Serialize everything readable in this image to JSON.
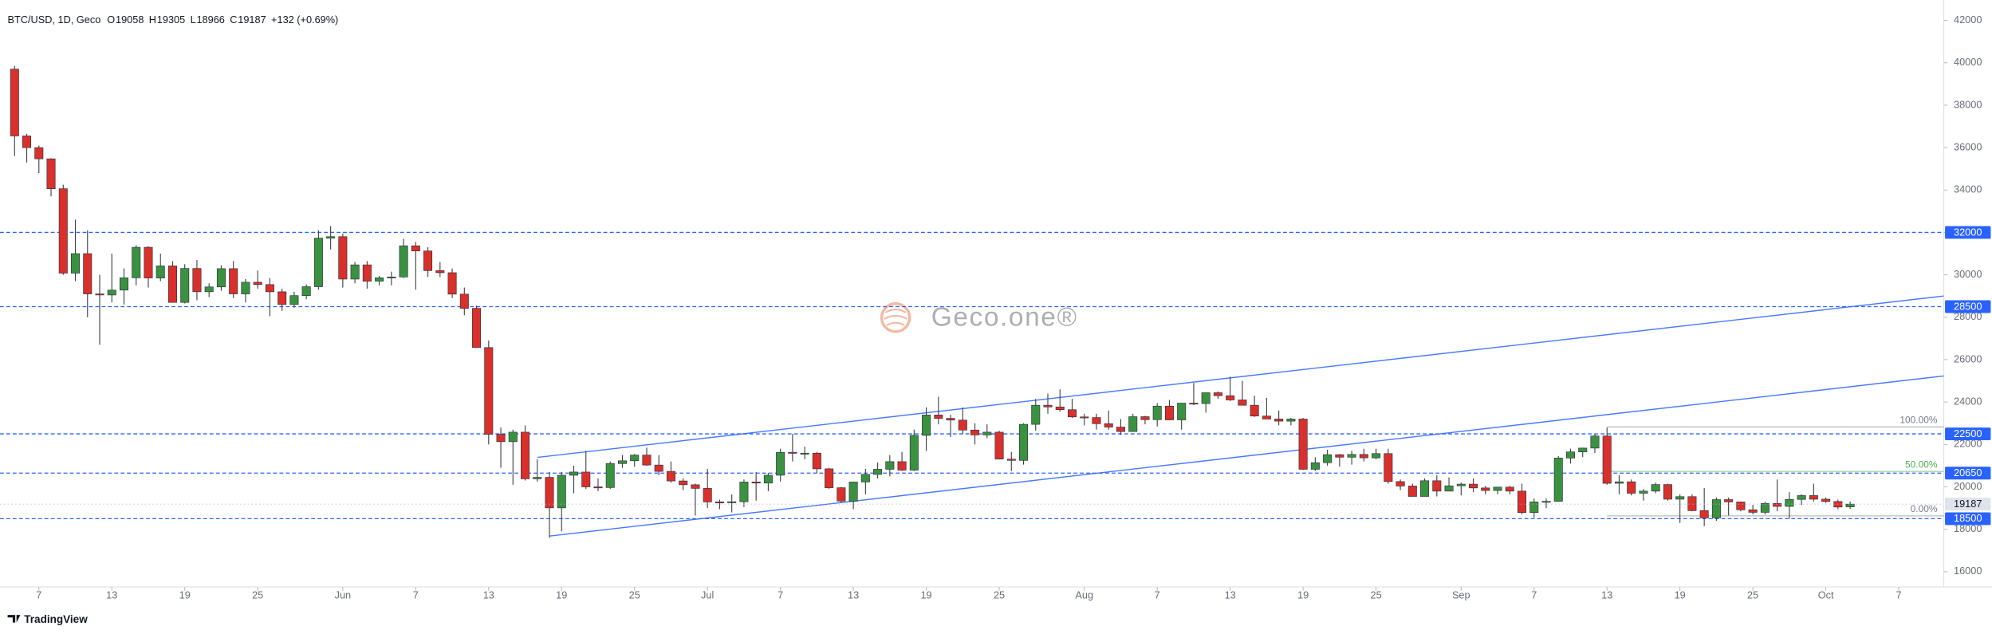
{
  "chart_data": {
    "type": "candlestick",
    "symbol": "BTC/USD, 1D, Geco",
    "ohlc_keys": [
      "O",
      "H",
      "L",
      "C"
    ],
    "change": "+132 (+0.69%)",
    "watermark": "Geco.one®",
    "brand": "TradingView",
    "up_color": "#3a9240",
    "down_color": "#d9302c",
    "level_color": "#2962ff",
    "xlim": [
      -1.2,
      158.7
    ],
    "ylim": [
      15280,
      42660
    ],
    "yticks": [
      16000,
      18000,
      20000,
      22000,
      24000,
      26000,
      28000,
      30000,
      32000,
      34000,
      36000,
      38000,
      40000,
      42000
    ],
    "xticks": [
      {
        "value": 2,
        "label": "7"
      },
      {
        "value": 8,
        "label": "13"
      },
      {
        "value": 14,
        "label": "19"
      },
      {
        "value": 20,
        "label": "25"
      },
      {
        "value": 27,
        "label": "Jun"
      },
      {
        "value": 33,
        "label": "7"
      },
      {
        "value": 39,
        "label": "13"
      },
      {
        "value": 45,
        "label": "19"
      },
      {
        "value": 51,
        "label": "25"
      },
      {
        "value": 57,
        "label": "Jul"
      },
      {
        "value": 63,
        "label": "7"
      },
      {
        "value": 69,
        "label": "13"
      },
      {
        "value": 75,
        "label": "19"
      },
      {
        "value": 81,
        "label": "25"
      },
      {
        "value": 88,
        "label": "Aug"
      },
      {
        "value": 94,
        "label": "7"
      },
      {
        "value": 100,
        "label": "13"
      },
      {
        "value": 106,
        "label": "19"
      },
      {
        "value": 112,
        "label": "25"
      },
      {
        "value": 119,
        "label": "Sep"
      },
      {
        "value": 125,
        "label": "7"
      },
      {
        "value": 131,
        "label": "13"
      },
      {
        "value": 137,
        "label": "19"
      },
      {
        "value": 143,
        "label": "25"
      },
      {
        "value": 149,
        "label": "Oct"
      },
      {
        "value": 155,
        "label": "7"
      }
    ],
    "levels": [
      32000,
      28500,
      22500,
      20650,
      18500
    ],
    "last_price": 19187,
    "fib": [
      {
        "value": 22830,
        "label": "100.00%",
        "color": "#787b86"
      },
      {
        "value": 20730,
        "label": "50.00%",
        "color": "#4caf50"
      },
      {
        "value": 18630,
        "label": "0.00%",
        "color": "#787b86"
      }
    ],
    "fib_start": 131,
    "trendlines": [
      [
        [
          43,
          21390
        ],
        [
          158.7,
          29000
        ]
      ],
      [
        [
          44,
          17680
        ],
        [
          158.7,
          25230
        ]
      ]
    ],
    "candles": [
      [
        39700,
        39850,
        35600,
        36550
      ],
      [
        36550,
        36650,
        35300,
        36000
      ],
      [
        36000,
        36100,
        34800,
        35470
      ],
      [
        35470,
        35500,
        33700,
        34060
      ],
      [
        34060,
        34250,
        30000,
        30080
      ],
      [
        30080,
        32600,
        29700,
        31000
      ],
      [
        31000,
        32100,
        28000,
        29100
      ],
      [
        29100,
        30000,
        26700,
        29050
      ],
      [
        29050,
        31000,
        28700,
        29280
      ],
      [
        29280,
        30300,
        28600,
        29860
      ],
      [
        29860,
        31400,
        29500,
        31300
      ],
      [
        31300,
        31350,
        29400,
        29850
      ],
      [
        29850,
        31000,
        29700,
        30420
      ],
      [
        30420,
        30650,
        28700,
        28700
      ],
      [
        28700,
        30500,
        28650,
        30300
      ],
      [
        30300,
        30700,
        28800,
        29200
      ],
      [
        29200,
        29600,
        28950,
        29430
      ],
      [
        29430,
        30450,
        29250,
        30290
      ],
      [
        30290,
        30650,
        28900,
        29100
      ],
      [
        29100,
        29800,
        28700,
        29650
      ],
      [
        29650,
        30200,
        29350,
        29540
      ],
      [
        29540,
        29850,
        28050,
        29200
      ],
      [
        29200,
        29350,
        28300,
        28600
      ],
      [
        28600,
        29200,
        28450,
        29020
      ],
      [
        29020,
        29550,
        28850,
        29440
      ],
      [
        29440,
        32100,
        29300,
        31730
      ],
      [
        31730,
        32300,
        31200,
        31800
      ],
      [
        31800,
        31950,
        29400,
        29800
      ],
      [
        29800,
        30600,
        29600,
        30470
      ],
      [
        30470,
        30650,
        29350,
        29700
      ],
      [
        29700,
        29950,
        29500,
        29860
      ],
      [
        29860,
        30150,
        29500,
        29900
      ],
      [
        29900,
        31700,
        29850,
        31370
      ],
      [
        31370,
        31550,
        29300,
        31125
      ],
      [
        31125,
        31300,
        29900,
        30200
      ],
      [
        30200,
        30600,
        29900,
        30100
      ],
      [
        30100,
        30300,
        28900,
        29090
      ],
      [
        29090,
        29400,
        28100,
        28420
      ],
      [
        28420,
        28550,
        26600,
        26570
      ],
      [
        26570,
        26900,
        22000,
        22480
      ],
      [
        22480,
        22800,
        20900,
        22130
      ],
      [
        22130,
        22700,
        20100,
        22580
      ],
      [
        22580,
        22900,
        20300,
        20380
      ],
      [
        20380,
        21300,
        20250,
        20450
      ],
      [
        20450,
        20700,
        17600,
        19010
      ],
      [
        19010,
        20700,
        17900,
        20550
      ],
      [
        20550,
        21000,
        19700,
        20700
      ],
      [
        20700,
        21700,
        19900,
        20000
      ],
      [
        20000,
        20400,
        19800,
        19970
      ],
      [
        19970,
        21200,
        19900,
        21100
      ],
      [
        21100,
        21500,
        20900,
        21230
      ],
      [
        21230,
        21550,
        20950,
        21500
      ],
      [
        21500,
        21850,
        21000,
        21030
      ],
      [
        21030,
        21500,
        20550,
        20730
      ],
      [
        20730,
        21200,
        20200,
        20280
      ],
      [
        20280,
        20400,
        19850,
        20100
      ],
      [
        20100,
        20150,
        18650,
        19930
      ],
      [
        19930,
        20850,
        19000,
        19290
      ],
      [
        19290,
        19400,
        18950,
        19250
      ],
      [
        19250,
        19650,
        18800,
        19300
      ],
      [
        19300,
        20350,
        19050,
        20230
      ],
      [
        20230,
        20700,
        19350,
        20180
      ],
      [
        20180,
        20650,
        19800,
        20550
      ],
      [
        20550,
        21800,
        20250,
        21630
      ],
      [
        21630,
        22500,
        21200,
        21590
      ],
      [
        21590,
        21900,
        21300,
        21590
      ],
      [
        21590,
        21650,
        20650,
        20850
      ],
      [
        20850,
        20900,
        19900,
        19960
      ],
      [
        19960,
        20000,
        19250,
        19330
      ],
      [
        19330,
        20200,
        18950,
        20230
      ],
      [
        20230,
        20850,
        19650,
        20590
      ],
      [
        20590,
        21150,
        20400,
        20830
      ],
      [
        20830,
        21500,
        20500,
        21190
      ],
      [
        21190,
        21650,
        20750,
        20790
      ],
      [
        20790,
        22700,
        20750,
        22430
      ],
      [
        22430,
        23750,
        21700,
        23390
      ],
      [
        23390,
        24250,
        22950,
        23230
      ],
      [
        23230,
        23400,
        22350,
        23150
      ],
      [
        23150,
        23750,
        22500,
        22680
      ],
      [
        22680,
        23000,
        22000,
        22450
      ],
      [
        22450,
        22950,
        22300,
        22580
      ],
      [
        22580,
        22650,
        21300,
        21310
      ],
      [
        21310,
        21650,
        20750,
        21250
      ],
      [
        21250,
        23000,
        21050,
        22950
      ],
      [
        22950,
        24150,
        22650,
        23850
      ],
      [
        23850,
        24400,
        23450,
        23770
      ],
      [
        23770,
        24600,
        23550,
        23640
      ],
      [
        23640,
        24150,
        23250,
        23300
      ],
      [
        23300,
        23450,
        22900,
        23270
      ],
      [
        23270,
        23450,
        22700,
        22980
      ],
      [
        22980,
        23600,
        22700,
        22820
      ],
      [
        22820,
        23200,
        22450,
        22610
      ],
      [
        22610,
        23450,
        22600,
        23310
      ],
      [
        23310,
        23350,
        22950,
        23170
      ],
      [
        23170,
        23950,
        22850,
        23810
      ],
      [
        23810,
        24100,
        23150,
        23160
      ],
      [
        23160,
        23950,
        22700,
        23950
      ],
      [
        23950,
        24900,
        23850,
        23930
      ],
      [
        23930,
        24400,
        23500,
        24440
      ],
      [
        24440,
        24500,
        24150,
        24300
      ],
      [
        24300,
        25200,
        24050,
        24100
      ],
      [
        24100,
        25000,
        23850,
        23850
      ],
      [
        23850,
        24300,
        23300,
        23340
      ],
      [
        23340,
        24200,
        23200,
        23200
      ],
      [
        23200,
        23600,
        22900,
        23100
      ],
      [
        23100,
        23250,
        22900,
        23200
      ],
      [
        23200,
        23250,
        20800,
        20830
      ],
      [
        20830,
        21400,
        20750,
        21140
      ],
      [
        21140,
        21750,
        21000,
        21520
      ],
      [
        21520,
        21550,
        20950,
        21400
      ],
      [
        21400,
        21700,
        21050,
        21530
      ],
      [
        21530,
        21800,
        21200,
        21370
      ],
      [
        21370,
        21800,
        21300,
        21570
      ],
      [
        21570,
        21800,
        20150,
        20250
      ],
      [
        20250,
        20350,
        19850,
        20040
      ],
      [
        20040,
        20150,
        19550,
        19550
      ],
      [
        19550,
        20400,
        19550,
        20290
      ],
      [
        20290,
        20550,
        19550,
        19800
      ],
      [
        19800,
        20450,
        19800,
        20050
      ],
      [
        20050,
        20200,
        19600,
        20130
      ],
      [
        20130,
        20400,
        19750,
        19950
      ],
      [
        19950,
        20050,
        19650,
        19830
      ],
      [
        19830,
        20000,
        19650,
        19990
      ],
      [
        19990,
        20050,
        19650,
        19800
      ],
      [
        19800,
        20150,
        18700,
        18790
      ],
      [
        18790,
        19450,
        18550,
        19290
      ],
      [
        19290,
        19450,
        19000,
        19320
      ],
      [
        19320,
        21450,
        19300,
        21360
      ],
      [
        21360,
        21800,
        21100,
        21650
      ],
      [
        21650,
        21850,
        21400,
        21830
      ],
      [
        21830,
        22500,
        21600,
        22400
      ],
      [
        22400,
        22800,
        20100,
        20170
      ],
      [
        20170,
        20550,
        19650,
        20240
      ],
      [
        20240,
        20350,
        19600,
        19700
      ],
      [
        19700,
        19900,
        19350,
        19800
      ],
      [
        19800,
        20200,
        19700,
        20110
      ],
      [
        20110,
        20150,
        19350,
        19420
      ],
      [
        19420,
        19650,
        18300,
        19540
      ],
      [
        19540,
        19650,
        18850,
        18880
      ],
      [
        18880,
        19950,
        18150,
        18540
      ],
      [
        18540,
        19500,
        18400,
        19400
      ],
      [
        19400,
        19500,
        18650,
        19290
      ],
      [
        19290,
        19300,
        18850,
        18920
      ],
      [
        18920,
        19150,
        18700,
        18800
      ],
      [
        18800,
        19300,
        18700,
        19220
      ],
      [
        19220,
        20350,
        18850,
        19080
      ],
      [
        19080,
        19750,
        18500,
        19410
      ],
      [
        19410,
        19650,
        19150,
        19590
      ],
      [
        19590,
        20150,
        19300,
        19420
      ],
      [
        19420,
        19500,
        19250,
        19310
      ],
      [
        19310,
        19400,
        18950,
        19050
      ],
      [
        19058,
        19305,
        18966,
        19187
      ]
    ]
  }
}
